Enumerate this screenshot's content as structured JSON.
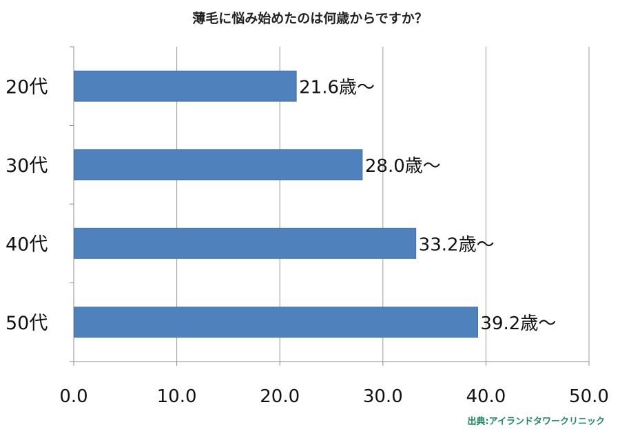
{
  "chart_data": {
    "type": "bar",
    "orientation": "horizontal",
    "title": "薄毛に悩み始めたのは何歳からですか？",
    "categories": [
      "20代",
      "30代",
      "40代",
      "50代"
    ],
    "values": [
      21.6,
      28.0,
      33.2,
      39.2
    ],
    "data_labels": [
      "21.6歳～",
      "28.0歳～",
      "33.2歳～",
      "39.2歳～"
    ],
    "x_ticks": [
      "0.0",
      "10.0",
      "20.0",
      "30.0",
      "40.0",
      "50.0"
    ],
    "xlim": [
      0,
      50
    ],
    "grid": "vertical",
    "legend": "none",
    "source": "出典:アイランドタワークリニック",
    "colors": {
      "bar": "#4f81bd",
      "bar_edge": "#3f6fa8",
      "grid": "#9a9a9a",
      "axis": "#8c8c8c",
      "source": "#1a8a5c"
    }
  }
}
